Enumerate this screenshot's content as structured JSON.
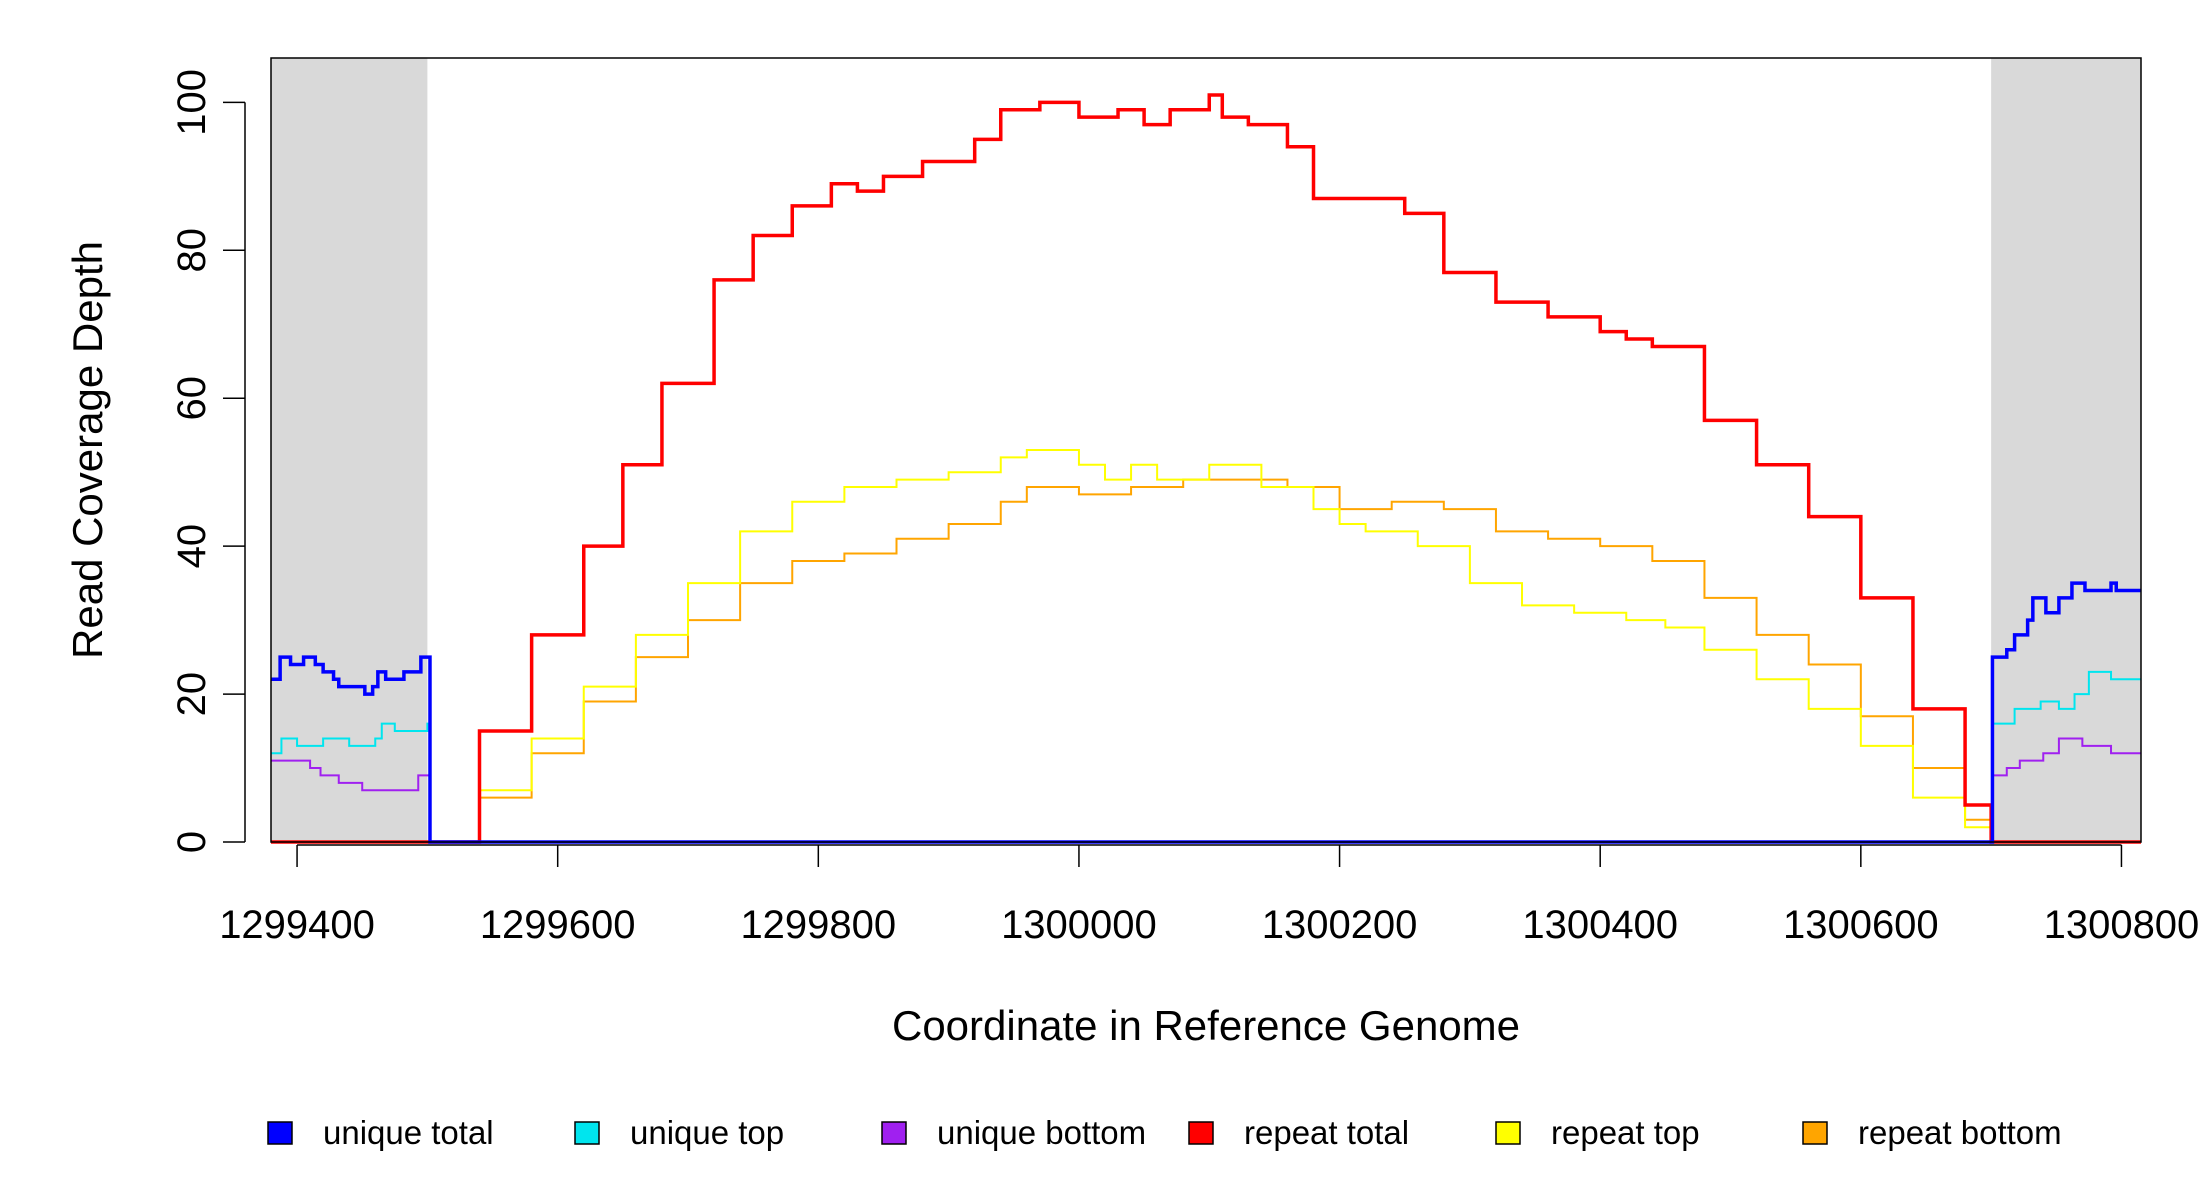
{
  "chart_data": {
    "type": "line",
    "title": "",
    "xlabel": "Coordinate in Reference Genome",
    "ylabel": "Read Coverage Depth",
    "xlim": [
      1299380,
      1300815
    ],
    "ylim": [
      0,
      106
    ],
    "x_ticks": [
      1299400,
      1299600,
      1299800,
      1300000,
      1300200,
      1300400,
      1300600,
      1300800
    ],
    "x_tick_labels": [
      "1299400",
      "1299600",
      "1299800",
      "1300000",
      "1300200",
      "1300400",
      "1300600",
      "1300800"
    ],
    "y_ticks": [
      0,
      20,
      40,
      60,
      80,
      100
    ],
    "y_tick_labels": [
      "0",
      "20",
      "40",
      "60",
      "80",
      "100"
    ],
    "shaded_regions": [
      {
        "x": [
          1299380,
          1299500
        ],
        "color": "#d9d9d9"
      },
      {
        "x": [
          1300700,
          1300815
        ],
        "color": "#d9d9d9"
      }
    ],
    "legend_position": "bottom",
    "series": [
      {
        "name": "unique total",
        "color": "#0000ff",
        "x": [
          1299380,
          1299387,
          1299395,
          1299405,
          1299414,
          1299420,
          1299428,
          1299432,
          1299440,
          1299452,
          1299458,
          1299462,
          1299468,
          1299482,
          1299495,
          1299500,
          1299502,
          1300700,
          1300701,
          1300712,
          1300718,
          1300728,
          1300732,
          1300742,
          1300752,
          1300762,
          1300772,
          1300792,
          1300796,
          1300815
        ],
        "y": [
          22,
          25,
          24,
          25,
          24,
          23,
          22,
          21,
          21,
          20,
          21,
          23,
          22,
          23,
          25,
          25,
          0,
          0,
          25,
          26,
          28,
          30,
          33,
          31,
          33,
          35,
          34,
          35,
          34,
          34
        ]
      },
      {
        "name": "unique top",
        "color": "#00e5ee",
        "x": [
          1299380,
          1299388,
          1299400,
          1299420,
          1299440,
          1299460,
          1299465,
          1299475,
          1299500,
          1299502,
          1300700,
          1300701,
          1300718,
          1300738,
          1300752,
          1300764,
          1300775,
          1300792,
          1300815
        ],
        "y": [
          12,
          14,
          13,
          14,
          13,
          14,
          16,
          15,
          16,
          0,
          0,
          16,
          18,
          19,
          18,
          20,
          23,
          22,
          22
        ]
      },
      {
        "name": "unique bottom",
        "color": "#a020f0",
        "x": [
          1299380,
          1299410,
          1299418,
          1299425,
          1299432,
          1299450,
          1299475,
          1299493,
          1299500,
          1299502,
          1300700,
          1300701,
          1300712,
          1300722,
          1300740,
          1300752,
          1300770,
          1300792,
          1300815
        ],
        "y": [
          11,
          10,
          9,
          9,
          8,
          7,
          7,
          9,
          9,
          0,
          0,
          9,
          10,
          11,
          12,
          14,
          13,
          12,
          12
        ]
      },
      {
        "name": "repeat total",
        "color": "#ff0000",
        "x": [
          1299380,
          1299500,
          1299540,
          1299580,
          1299620,
          1299650,
          1299680,
          1299720,
          1299750,
          1299780,
          1299810,
          1299830,
          1299850,
          1299880,
          1299920,
          1299940,
          1299970,
          1300000,
          1300030,
          1300050,
          1300070,
          1300100,
          1300110,
          1300130,
          1300160,
          1300180,
          1300200,
          1300220,
          1300250,
          1300280,
          1300320,
          1300360,
          1300400,
          1300420,
          1300440,
          1300450,
          1300480,
          1300520,
          1300560,
          1300600,
          1300640,
          1300680,
          1300700,
          1300815
        ],
        "y": [
          0,
          0,
          15,
          28,
          40,
          51,
          62,
          76,
          82,
          86,
          89,
          88,
          90,
          92,
          95,
          99,
          100,
          98,
          99,
          97,
          99,
          101,
          98,
          97,
          94,
          87,
          87,
          87,
          85,
          77,
          73,
          71,
          69,
          68,
          67,
          67,
          57,
          51,
          44,
          33,
          18,
          5,
          0,
          0
        ]
      },
      {
        "name": "repeat top",
        "color": "#ffff00",
        "x": [
          1299380,
          1299500,
          1299540,
          1299580,
          1299620,
          1299660,
          1299700,
          1299740,
          1299780,
          1299820,
          1299860,
          1299900,
          1299940,
          1299960,
          1300000,
          1300020,
          1300040,
          1300060,
          1300100,
          1300140,
          1300180,
          1300200,
          1300220,
          1300260,
          1300300,
          1300340,
          1300380,
          1300420,
          1300450,
          1300480,
          1300520,
          1300560,
          1300600,
          1300640,
          1300680,
          1300700,
          1300815
        ],
        "y": [
          0,
          0,
          7,
          14,
          21,
          28,
          35,
          42,
          46,
          48,
          49,
          50,
          52,
          53,
          51,
          49,
          51,
          49,
          51,
          48,
          45,
          43,
          42,
          40,
          35,
          32,
          31,
          30,
          29,
          26,
          22,
          18,
          13,
          6,
          2,
          0,
          0
        ]
      },
      {
        "name": "repeat bottom",
        "color": "#ffa500",
        "x": [
          1299380,
          1299500,
          1299540,
          1299580,
          1299620,
          1299660,
          1299700,
          1299740,
          1299780,
          1299820,
          1299860,
          1299900,
          1299940,
          1299960,
          1300000,
          1300040,
          1300080,
          1300120,
          1300160,
          1300200,
          1300240,
          1300280,
          1300320,
          1300360,
          1300400,
          1300440,
          1300450,
          1300480,
          1300520,
          1300560,
          1300600,
          1300640,
          1300680,
          1300700,
          1300815
        ],
        "y": [
          0,
          0,
          6,
          12,
          19,
          25,
          30,
          35,
          38,
          39,
          41,
          43,
          46,
          48,
          47,
          48,
          49,
          49,
          48,
          45,
          46,
          45,
          42,
          41,
          40,
          38,
          38,
          33,
          28,
          24,
          17,
          10,
          3,
          0,
          0
        ]
      }
    ]
  }
}
